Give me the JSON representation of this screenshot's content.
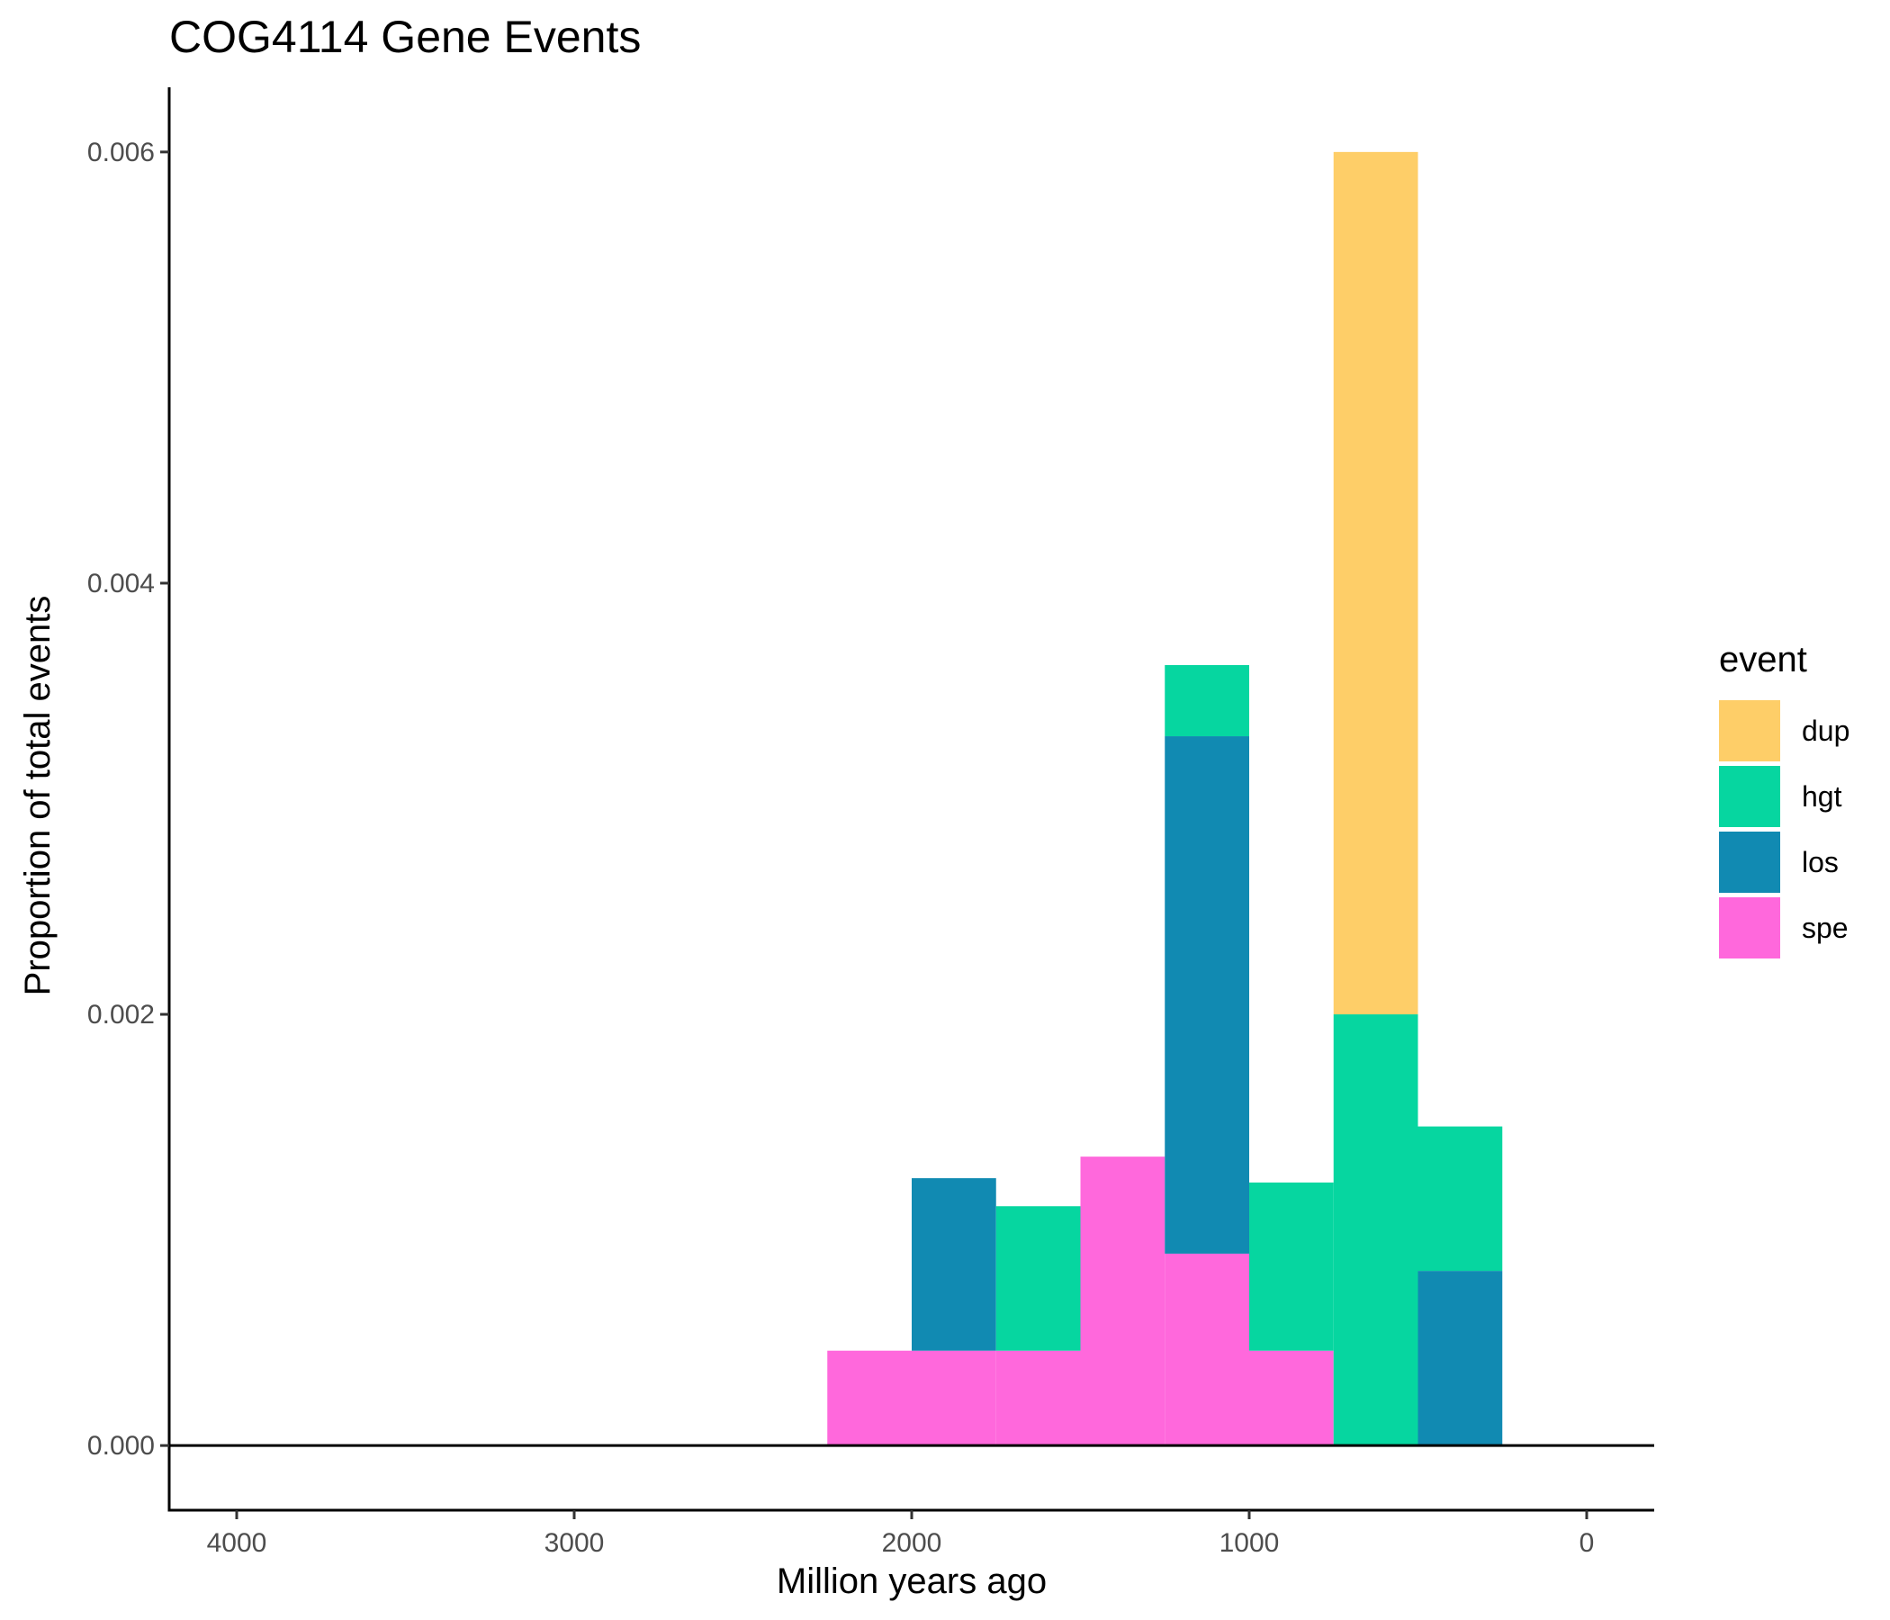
{
  "chart_data": {
    "type": "bar",
    "stacked": true,
    "title": "COG4114 Gene Events",
    "xlabel": "Million years ago",
    "ylabel": "Proportion of total events",
    "x_reversed": true,
    "xlim": [
      4200,
      -200
    ],
    "ylim": [
      -0.0003,
      0.0063
    ],
    "x_ticks": [
      4000,
      3000,
      2000,
      1000,
      0
    ],
    "y_ticks": [
      0.0,
      0.002,
      0.004,
      0.006
    ],
    "x_tick_labels": [
      "4000",
      "3000",
      "2000",
      "1000",
      "0"
    ],
    "y_tick_labels": [
      "0.000",
      "0.002",
      "0.004",
      "0.006"
    ],
    "bin_width": 250,
    "bins": [
      2125,
      1875,
      1625,
      1375,
      1125,
      875,
      625,
      375
    ],
    "stack_order": [
      "spe",
      "los",
      "hgt",
      "dup"
    ],
    "series": [
      {
        "name": "dup",
        "color": "#FECE68",
        "values": [
          0,
          0,
          0,
          0,
          0,
          0,
          0.004,
          0
        ]
      },
      {
        "name": "hgt",
        "color": "#06D6A0",
        "values": [
          0,
          0,
          0.00067,
          0,
          0.00033,
          0.00078,
          0.002,
          0.00067
        ]
      },
      {
        "name": "los",
        "color": "#118AB2",
        "values": [
          0,
          0.0008,
          0,
          0,
          0.0024,
          0,
          0,
          0.00081
        ]
      },
      {
        "name": "spe",
        "color": "#FF68DC",
        "values": [
          0.00044,
          0.00044,
          0.00044,
          0.00134,
          0.00089,
          0.00044,
          0,
          0
        ]
      }
    ],
    "legend": {
      "title": "event",
      "position": "right",
      "entries": [
        "dup",
        "hgt",
        "los",
        "spe"
      ]
    },
    "grid": false
  }
}
